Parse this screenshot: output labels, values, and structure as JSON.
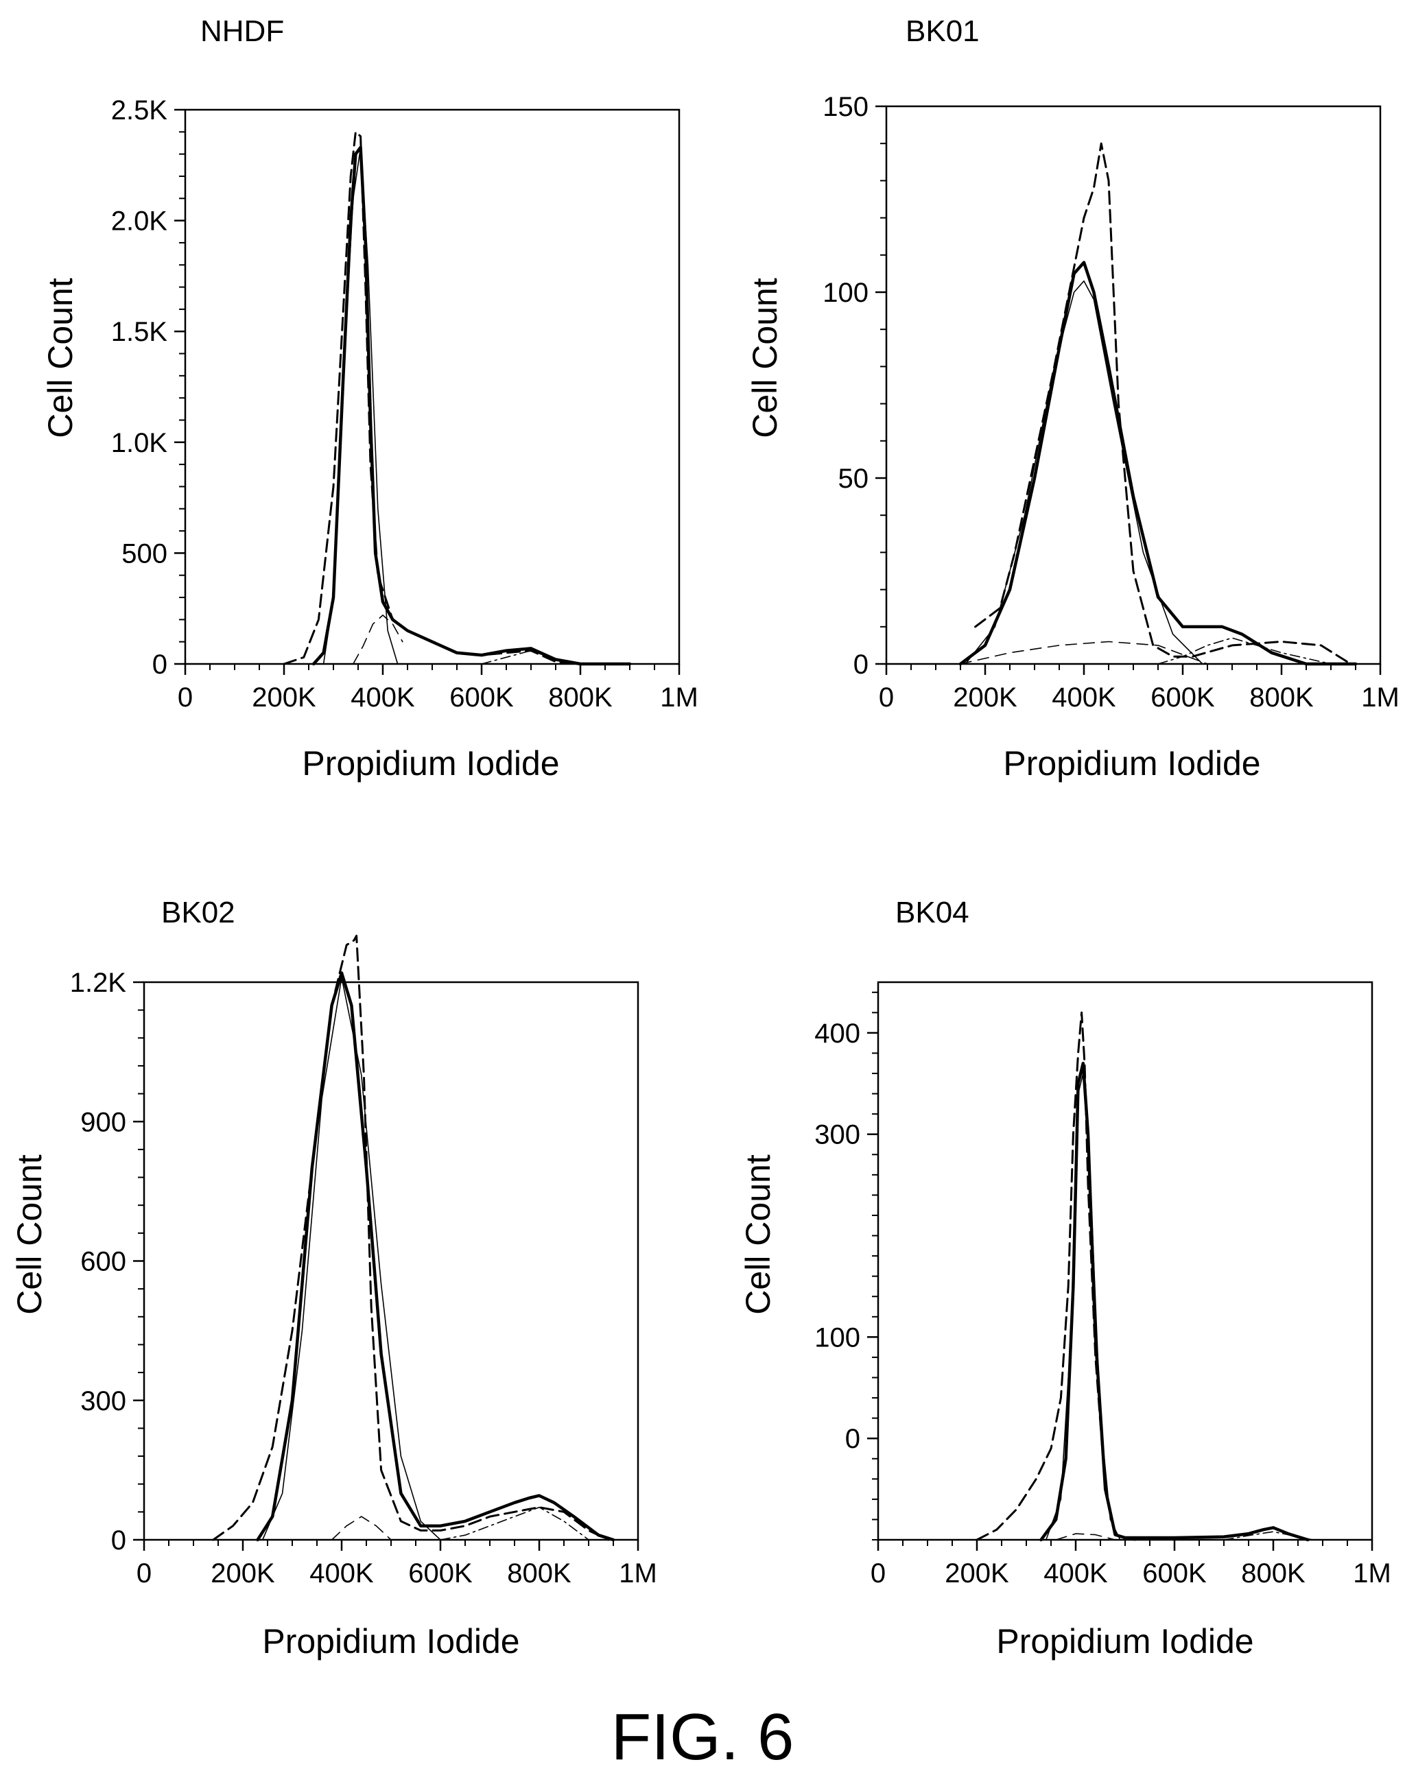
{
  "figure_label": "FIG. 6",
  "line_styles": {
    "total": {
      "color": "#000000",
      "dash": "",
      "weight": "heavy"
    },
    "data": {
      "color": "#000000",
      "dash": "dashed",
      "weight": "medium"
    },
    "g1": {
      "color": "#000000",
      "dash": "",
      "weight": "thin"
    },
    "s_phase": {
      "color": "#000000",
      "dash": "long-dash",
      "weight": "thin"
    },
    "g2": {
      "color": "#000000",
      "dash": "dash-dot",
      "weight": "thin"
    }
  },
  "chart_data": [
    {
      "type": "line",
      "title": "NHDF",
      "xlabel": "Propidium Iodide",
      "ylabel": "Cell Count",
      "xlim": [
        0,
        1000000
      ],
      "ylim": [
        0,
        2500
      ],
      "xticks": [
        0,
        200000,
        400000,
        600000,
        800000,
        1000000
      ],
      "xtick_labels": [
        "0",
        "200K",
        "400K",
        "600K",
        "800K",
        "1M"
      ],
      "yticks": [
        0,
        500,
        1000,
        1500,
        2000,
        2500
      ],
      "ytick_labels": [
        "0",
        "500",
        "1.0K",
        "1.5K",
        "2.0K",
        "2.5K"
      ],
      "grid": false,
      "series": [
        {
          "role": "total",
          "style": "total",
          "x": [
            260000,
            280000,
            300000,
            320000,
            335000,
            345000,
            355000,
            365000,
            375000,
            385000,
            400000,
            420000,
            450000,
            500000,
            550000,
            600000,
            650000,
            700000,
            750000,
            800000,
            900000
          ],
          "y": [
            0,
            50,
            300,
            1300,
            2000,
            2300,
            2330,
            1900,
            1100,
            500,
            280,
            200,
            150,
            100,
            50,
            40,
            60,
            70,
            20,
            0,
            0
          ]
        },
        {
          "role": "data",
          "style": "data",
          "x": [
            200000,
            240000,
            270000,
            300000,
            320000,
            335000,
            345000,
            355000,
            365000,
            375000,
            390000,
            420000,
            450000,
            500000,
            550000,
            600000,
            650000,
            700000,
            750000,
            800000
          ],
          "y": [
            0,
            30,
            200,
            800,
            1600,
            2200,
            2400,
            2380,
            1700,
            900,
            400,
            200,
            150,
            100,
            50,
            40,
            50,
            60,
            10,
            0
          ]
        },
        {
          "role": "G1 fit",
          "style": "g1",
          "x": [
            280000,
            300000,
            320000,
            340000,
            355000,
            370000,
            390000,
            410000,
            430000
          ],
          "y": [
            0,
            300,
            1300,
            2100,
            2330,
            1800,
            700,
            150,
            0
          ]
        },
        {
          "role": "S-phase fit",
          "style": "s_phase",
          "x": [
            340000,
            360000,
            380000,
            400000,
            420000,
            440000
          ],
          "y": [
            0,
            80,
            180,
            220,
            180,
            100
          ]
        },
        {
          "role": "G2 fit",
          "style": "g2",
          "x": [
            600000,
            650000,
            700000,
            750000,
            800000
          ],
          "y": [
            0,
            30,
            60,
            20,
            0
          ]
        }
      ]
    },
    {
      "type": "line",
      "title": "BK01",
      "xlabel": "Propidium Iodide",
      "ylabel": "Cell Count",
      "xlim": [
        0,
        1000000
      ],
      "ylim": [
        0,
        150
      ],
      "xticks": [
        0,
        200000,
        400000,
        600000,
        800000,
        1000000
      ],
      "xtick_labels": [
        "0",
        "200K",
        "400K",
        "600K",
        "800K",
        "1M"
      ],
      "yticks": [
        0,
        50,
        100,
        150
      ],
      "ytick_labels": [
        "0",
        "50",
        "100",
        "150"
      ],
      "grid": false,
      "series": [
        {
          "role": "total",
          "style": "total",
          "x": [
            150000,
            200000,
            250000,
            300000,
            350000,
            380000,
            400000,
            420000,
            450000,
            500000,
            550000,
            600000,
            650000,
            680000,
            720000,
            780000,
            850000,
            950000
          ],
          "y": [
            0,
            5,
            20,
            50,
            85,
            105,
            108,
            100,
            80,
            45,
            18,
            10,
            10,
            10,
            8,
            3,
            0,
            0
          ]
        },
        {
          "role": "data",
          "style": "data",
          "x": [
            180000,
            200000,
            230000,
            260000,
            300000,
            340000,
            370000,
            400000,
            420000,
            435000,
            450000,
            470000,
            500000,
            540000,
            580000,
            620000,
            700000,
            800000,
            880000,
            940000
          ],
          "y": [
            10,
            12,
            15,
            30,
            55,
            80,
            100,
            120,
            128,
            140,
            130,
            70,
            25,
            5,
            2,
            2,
            5,
            6,
            5,
            0
          ]
        },
        {
          "role": "G1 fit",
          "style": "g1",
          "x": [
            160000,
            220000,
            280000,
            340000,
            380000,
            400000,
            420000,
            460000,
            520000,
            580000,
            640000
          ],
          "y": [
            0,
            10,
            40,
            80,
            100,
            103,
            98,
            70,
            30,
            8,
            0
          ]
        },
        {
          "role": "S-phase fit",
          "style": "s_phase",
          "x": [
            150000,
            250000,
            350000,
            450000,
            550000,
            650000
          ],
          "y": [
            0,
            3,
            5,
            6,
            5,
            0
          ]
        },
        {
          "role": "G2 fit",
          "style": "g2",
          "x": [
            550000,
            600000,
            650000,
            700000,
            750000,
            800000,
            900000
          ],
          "y": [
            0,
            2,
            5,
            7,
            5,
            3,
            0
          ]
        }
      ]
    },
    {
      "type": "line",
      "title": "BK02",
      "xlabel": "Propidium Iodide",
      "ylabel": "Cell Count",
      "xlim": [
        0,
        1000000
      ],
      "ylim": [
        0,
        1200
      ],
      "xticks": [
        0,
        200000,
        400000,
        600000,
        800000,
        1000000
      ],
      "xtick_labels": [
        "0",
        "200K",
        "400K",
        "600K",
        "800K",
        "1M"
      ],
      "yticks": [
        0,
        300,
        600,
        900,
        1200
      ],
      "ytick_labels": [
        "0",
        "300",
        "600",
        "900",
        "1.2K"
      ],
      "grid": false,
      "series": [
        {
          "role": "total",
          "style": "total",
          "x": [
            230000,
            260000,
            300000,
            340000,
            380000,
            400000,
            420000,
            450000,
            480000,
            520000,
            560000,
            600000,
            650000,
            700000,
            750000,
            780000,
            800000,
            830000,
            870000,
            920000,
            950000
          ],
          "y": [
            0,
            50,
            300,
            800,
            1150,
            1220,
            1150,
            800,
            400,
            100,
            30,
            30,
            40,
            60,
            80,
            90,
            95,
            80,
            50,
            10,
            0
          ]
        },
        {
          "role": "data",
          "style": "data",
          "x": [
            140000,
            180000,
            220000,
            260000,
            300000,
            340000,
            380000,
            410000,
            425000,
            430000,
            445000,
            460000,
            480000,
            520000,
            560000,
            600000,
            650000,
            700000,
            750000,
            800000,
            850000,
            900000,
            940000
          ],
          "y": [
            0,
            30,
            80,
            200,
            450,
            800,
            1150,
            1280,
            1290,
            1300,
            1000,
            500,
            150,
            40,
            20,
            20,
            30,
            50,
            60,
            70,
            60,
            20,
            0
          ]
        },
        {
          "role": "G1 fit",
          "style": "g1",
          "x": [
            240000,
            280000,
            320000,
            360000,
            400000,
            440000,
            480000,
            520000,
            560000,
            600000
          ],
          "y": [
            0,
            100,
            450,
            950,
            1210,
            1000,
            550,
            180,
            40,
            0
          ]
        },
        {
          "role": "S-phase fit",
          "style": "s_phase",
          "x": [
            380000,
            410000,
            440000,
            470000,
            500000
          ],
          "y": [
            0,
            30,
            50,
            30,
            0
          ]
        },
        {
          "role": "G2 fit",
          "style": "g2",
          "x": [
            600000,
            650000,
            700000,
            750000,
            800000,
            850000,
            900000
          ],
          "y": [
            0,
            10,
            30,
            50,
            70,
            40,
            0
          ]
        }
      ]
    },
    {
      "type": "line",
      "title": "BK04",
      "xlabel": "Propidium Iodide",
      "ylabel": "Cell Count",
      "xlim": [
        0,
        1000000
      ],
      "ylim": [
        -100,
        450
      ],
      "xticks": [
        0,
        200000,
        400000,
        600000,
        800000,
        1000000
      ],
      "xtick_labels": [
        "0",
        "200K",
        "400K",
        "600K",
        "800K",
        "1M"
      ],
      "yticks": [
        0,
        100,
        300,
        400
      ],
      "ytick_labels": [
        "0",
        "100",
        "300",
        "400"
      ],
      "ytick_values": [
        0,
        100,
        300,
        400
      ],
      "grid": false,
      "series": [
        {
          "role": "total",
          "style": "total",
          "x": [
            330000,
            360000,
            380000,
            395000,
            405000,
            415000,
            425000,
            440000,
            460000,
            480000,
            500000,
            600000,
            700000,
            750000,
            780000,
            800000,
            830000,
            870000
          ],
          "y": [
            -100,
            -80,
            -20,
            150,
            350,
            370,
            300,
            100,
            -50,
            -95,
            -98,
            -98,
            -97,
            -94,
            -90,
            -88,
            -94,
            -100
          ]
        },
        {
          "role": "data",
          "style": "data",
          "x": [
            200000,
            240000,
            280000,
            320000,
            350000,
            370000,
            385000,
            395000,
            405000,
            412000,
            418000,
            425000,
            440000,
            460000,
            480000,
            520000
          ],
          "y": [
            -100,
            -90,
            -70,
            -40,
            -10,
            40,
            150,
            300,
            380,
            420,
            370,
            250,
            80,
            -50,
            -95,
            -100
          ]
        },
        {
          "role": "G1 fit",
          "style": "g1",
          "x": [
            340000,
            370000,
            390000,
            405000,
            415000,
            430000,
            450000,
            470000,
            490000
          ],
          "y": [
            -100,
            -60,
            100,
            340,
            360,
            250,
            20,
            -80,
            -100
          ]
        },
        {
          "role": "S-phase fit",
          "style": "s_phase",
          "x": [
            360000,
            400000,
            440000,
            480000
          ],
          "y": [
            -100,
            -94,
            -95,
            -100
          ]
        },
        {
          "role": "G2 fit",
          "style": "g2",
          "x": [
            700000,
            760000,
            800000,
            840000,
            880000
          ],
          "y": [
            -100,
            -95,
            -92,
            -96,
            -100
          ]
        }
      ]
    }
  ]
}
